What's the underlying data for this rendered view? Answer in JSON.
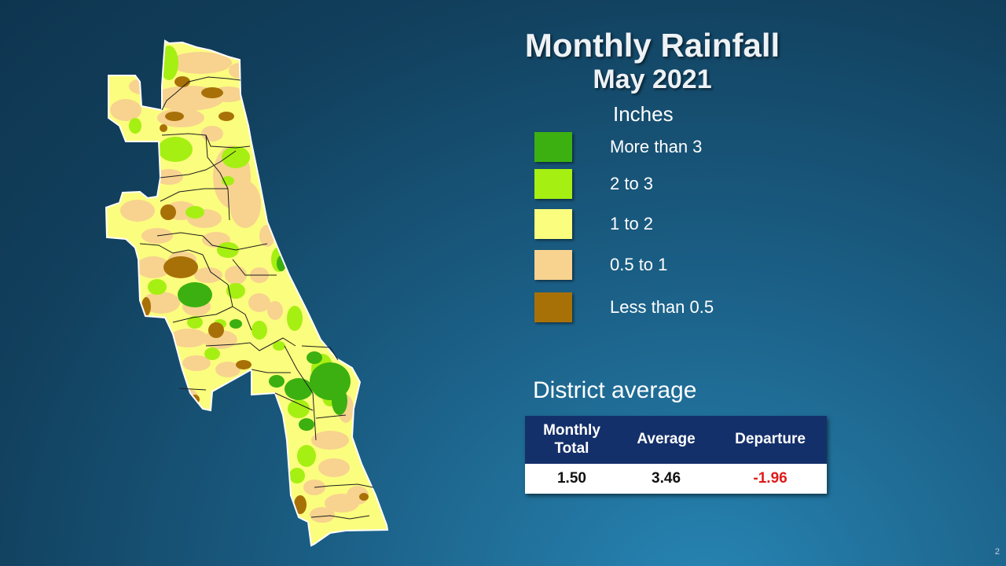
{
  "title": "Monthly Rainfall",
  "subtitle": "May 2021",
  "legend": {
    "units": "Inches",
    "items": [
      {
        "label": "More than 3",
        "color": "#3cb010"
      },
      {
        "label": "2 to 3",
        "color": "#a6ef12"
      },
      {
        "label": "1 to 2",
        "color": "#fbfd7e"
      },
      {
        "label": "0.5 to 1",
        "color": "#f7d38f"
      },
      {
        "label": "Less than 0.5",
        "color": "#a87108"
      }
    ]
  },
  "district": {
    "label": "District average",
    "headers": [
      "Monthly\nTotal",
      "Average",
      "Departure"
    ],
    "values": [
      "1.50",
      "3.46",
      "-1.96"
    ]
  },
  "page_number": "2"
}
